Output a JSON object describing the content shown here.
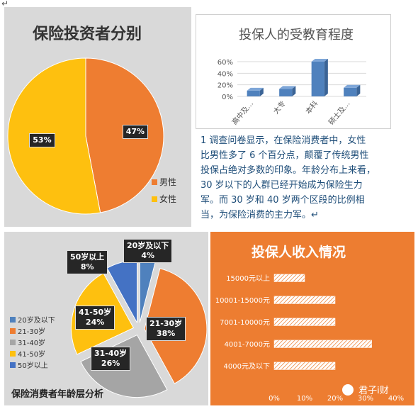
{
  "colors": {
    "orange": "#ee7d31",
    "yellow": "#fec00f",
    "blue": "#4f81bd",
    "gray": "#a5a5a5",
    "navy": "#4472c4",
    "panel_gray": "#d9d9d9",
    "income_bg": "#ed7d31"
  },
  "text": {
    "corner_mark": "↵",
    "paragraph": [
      "1 调查问卷显示，在保险消费者中，女性",
      "比男性多了 6 个百分点，颠覆了传统男性",
      "投保占绝对多数的印象。年龄分布上来看，",
      "30 岁以下的人群已经开始成为保险生力",
      "军。而 30 岁和 40 岁两个区段的比例相",
      "当，为保险消费的主力军。↵"
    ],
    "watermark": "君子i财"
  },
  "chart_data": [
    {
      "type": "pie",
      "title": "保险投资者分别",
      "categories": [
        "男性",
        "女性"
      ],
      "values": [
        47,
        53
      ],
      "labels": [
        "47%",
        "53%"
      ],
      "legend": "right"
    },
    {
      "type": "bar",
      "title": "投保人的受教育程度",
      "categories": [
        "高中及…",
        "大专",
        "本科",
        "硕士及…"
      ],
      "values": [
        10,
        13,
        60,
        15
      ],
      "ylim": [
        0,
        60
      ],
      "yticks": [
        "0%",
        "20%",
        "40%",
        "60%"
      ],
      "grid": true
    },
    {
      "type": "pie",
      "title": "保险消费者年龄层分析",
      "categories": [
        "20岁及以下",
        "21-30岁",
        "31-40岁",
        "41-50岁",
        "50岁以上"
      ],
      "values": [
        4,
        38,
        26,
        24,
        8
      ],
      "labels": [
        "20岁及以下\n4%",
        "21-30岁\n38%",
        "31-40岁\n26%",
        "41-50岁\n24%",
        "50岁以上\n8%"
      ],
      "legend": "left"
    },
    {
      "type": "bar",
      "orientation": "horizontal",
      "title": "投保人收入情况",
      "categories": [
        "15000元以上",
        "10001-15000元",
        "7001-10000元",
        "4001-7000元",
        "4000元及以下"
      ],
      "values": [
        10,
        20,
        20,
        32,
        20
      ],
      "xlim": [
        0,
        40
      ],
      "xticks": [
        "0%",
        "10%",
        "20%",
        "30%",
        "40%"
      ]
    }
  ]
}
